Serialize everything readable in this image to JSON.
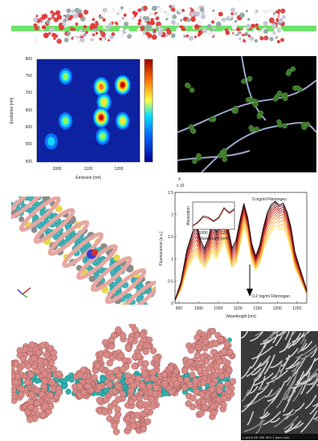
{
  "figure": {
    "heatmap": {
      "ylabel": "Excitation [nm]",
      "xlabel": "Emission [nm]",
      "yticks": [
        "800",
        "750",
        "700",
        "650",
        "600",
        "550",
        "500"
      ],
      "xticks": [
        "1000",
        "1100",
        "1200"
      ]
    },
    "sem": {
      "footer": "L-A0L5    SE  15K    3KV  1.5mm    1um"
    }
  },
  "chart_data": {
    "type": "line",
    "title": "",
    "xlabel": "Wavelength [nm]",
    "ylabel": "Fluorescence [a.u.]",
    "y_multiplier": "x 10",
    "y_multiplier_exp": "4",
    "xlim": [
      940,
      1275
    ],
    "ylim": [
      0,
      2.5
    ],
    "xticks": [
      "950",
      "1000",
      "1050",
      "1100",
      "1150",
      "1200",
      "1250"
    ],
    "yticks": [
      "0",
      "0.5",
      "1",
      "1.5",
      "2",
      "2.5"
    ],
    "annotations": {
      "top": "0 mg/ml Fibrinogen",
      "bottom": "0.2 mg/ml Fibrinogen"
    },
    "x": [
      940,
      955,
      970,
      985,
      995,
      1005,
      1015,
      1025,
      1035,
      1045,
      1055,
      1065,
      1075,
      1085,
      1095,
      1105,
      1115,
      1125,
      1135,
      1145,
      1155,
      1165,
      1175,
      1185,
      1195,
      1205,
      1215,
      1225,
      1235,
      1245,
      1255,
      1265,
      1275
    ],
    "series": [
      {
        "values": [
          0.05,
          0.3,
          0.75,
          1.0,
          1.1,
          0.9,
          0.8,
          0.95,
          1.15,
          1.0,
          1.2,
          1.4,
          1.1,
          0.8,
          0.9,
          1.3,
          1.75,
          1.45,
          0.95,
          0.75,
          0.9,
          1.2,
          1.45,
          1.6,
          1.75,
          1.65,
          1.7,
          1.5,
          1.2,
          0.8,
          0.6,
          0.4,
          0.2
        ],
        "color": "#fde24a"
      },
      {
        "values": [
          0.05,
          0.32,
          0.8,
          1.05,
          1.16,
          0.95,
          0.84,
          1.0,
          1.22,
          1.06,
          1.27,
          1.48,
          1.16,
          0.84,
          0.95,
          1.37,
          1.84,
          1.52,
          1.0,
          0.79,
          0.95,
          1.26,
          1.52,
          1.68,
          1.84,
          1.73,
          1.79,
          1.58,
          1.26,
          0.84,
          0.63,
          0.42,
          0.21
        ],
        "color": "#fcc53a"
      },
      {
        "values": [
          0.05,
          0.34,
          0.85,
          1.12,
          1.24,
          1.0,
          0.89,
          1.06,
          1.3,
          1.12,
          1.35,
          1.58,
          1.24,
          0.89,
          1.0,
          1.45,
          1.93,
          1.6,
          1.05,
          0.83,
          1.0,
          1.33,
          1.6,
          1.77,
          1.93,
          1.82,
          1.88,
          1.66,
          1.33,
          0.88,
          0.66,
          0.44,
          0.22
        ],
        "color": "#f8a233"
      },
      {
        "values": [
          0.06,
          0.36,
          0.9,
          1.2,
          1.33,
          1.06,
          0.94,
          1.12,
          1.38,
          1.19,
          1.44,
          1.68,
          1.32,
          0.94,
          1.06,
          1.53,
          2.0,
          1.67,
          1.1,
          0.87,
          1.05,
          1.4,
          1.68,
          1.86,
          2.0,
          1.9,
          1.95,
          1.73,
          1.4,
          0.92,
          0.69,
          0.46,
          0.23
        ],
        "color": "#f07a2c"
      },
      {
        "values": [
          0.06,
          0.38,
          0.95,
          1.28,
          1.42,
          1.12,
          0.99,
          1.18,
          1.46,
          1.26,
          1.52,
          1.78,
          1.39,
          0.99,
          1.12,
          1.6,
          2.05,
          1.72,
          1.15,
          0.91,
          1.1,
          1.47,
          1.76,
          1.94,
          2.06,
          1.96,
          2.01,
          1.8,
          1.46,
          0.96,
          0.72,
          0.48,
          0.24
        ],
        "color": "#e3542a"
      },
      {
        "values": [
          0.06,
          0.4,
          1.0,
          1.35,
          1.5,
          1.18,
          1.04,
          1.24,
          1.54,
          1.33,
          1.6,
          1.86,
          1.46,
          1.04,
          1.18,
          1.66,
          2.1,
          1.76,
          1.19,
          0.94,
          1.14,
          1.52,
          1.82,
          2.0,
          2.12,
          2.02,
          2.07,
          1.86,
          1.52,
          1.0,
          0.75,
          0.5,
          0.25
        ],
        "color": "#cc3526"
      },
      {
        "values": [
          0.07,
          0.42,
          1.05,
          1.42,
          1.58,
          1.24,
          1.09,
          1.3,
          1.62,
          1.4,
          1.68,
          1.94,
          1.52,
          1.09,
          1.24,
          1.72,
          2.14,
          1.8,
          1.23,
          0.97,
          1.18,
          1.57,
          1.88,
          2.06,
          2.17,
          2.07,
          2.12,
          1.92,
          1.57,
          1.04,
          0.78,
          0.52,
          0.26
        ],
        "color": "#ad2421"
      },
      {
        "values": [
          0.07,
          0.44,
          1.1,
          1.49,
          1.66,
          1.3,
          1.14,
          1.36,
          1.7,
          1.47,
          1.76,
          2.02,
          1.58,
          1.14,
          1.3,
          1.77,
          2.18,
          1.84,
          1.27,
          1.0,
          1.22,
          1.62,
          1.94,
          2.12,
          2.22,
          2.12,
          2.17,
          1.97,
          1.62,
          1.08,
          0.81,
          0.54,
          0.27
        ],
        "color": "#8a171b"
      },
      {
        "values": [
          0.07,
          0.46,
          1.15,
          1.56,
          1.74,
          1.36,
          1.19,
          1.42,
          1.78,
          1.54,
          1.84,
          2.1,
          1.64,
          1.19,
          1.36,
          1.82,
          2.22,
          1.88,
          1.31,
          1.03,
          1.26,
          1.67,
          2.0,
          2.18,
          2.27,
          2.17,
          2.22,
          2.02,
          1.67,
          1.12,
          0.84,
          0.56,
          0.28
        ],
        "color": "#5e0e14"
      },
      {
        "values": [
          0.08,
          0.48,
          1.2,
          1.62,
          1.8,
          1.42,
          1.24,
          1.48,
          1.85,
          1.6,
          1.9,
          2.16,
          1.7,
          1.24,
          1.42,
          1.87,
          2.25,
          1.92,
          1.35,
          1.06,
          1.3,
          1.72,
          2.05,
          2.23,
          2.3,
          2.21,
          2.26,
          2.06,
          1.71,
          1.15,
          0.86,
          0.58,
          0.29
        ],
        "color": "#1a0808"
      }
    ],
    "inset": {
      "xlabel": "Wavelength [nm]",
      "ylabel": "Absorption",
      "xticks": [
        "1000",
        "1200"
      ],
      "x": [
        900,
        950,
        1000,
        1050,
        1100,
        1150,
        1200,
        1250,
        1300
      ],
      "series": [
        {
          "values": [
            0.15,
            0.3,
            0.55,
            0.5,
            0.35,
            0.5,
            0.9,
            0.7,
            0.85
          ],
          "color": "#1a0808"
        },
        {
          "values": [
            0.13,
            0.27,
            0.5,
            0.45,
            0.32,
            0.46,
            0.85,
            0.66,
            0.8
          ],
          "color": "#cc3526"
        }
      ]
    },
    "heatmap_spots": [
      {
        "em": 1000,
        "ex": 750,
        "level": 0.45
      },
      {
        "em": 1125,
        "ex": 720,
        "level": 0.85
      },
      {
        "em": 1200,
        "ex": 725,
        "level": 0.95
      },
      {
        "em": 1135,
        "ex": 675,
        "level": 0.7
      },
      {
        "em": 1125,
        "ex": 630,
        "level": 1.0
      },
      {
        "em": 1000,
        "ex": 620,
        "level": 0.55
      },
      {
        "em": 1200,
        "ex": 620,
        "level": 0.6
      },
      {
        "em": 1130,
        "ex": 575,
        "level": 0.5
      },
      {
        "em": 950,
        "ex": 560,
        "level": 0.4
      }
    ]
  }
}
